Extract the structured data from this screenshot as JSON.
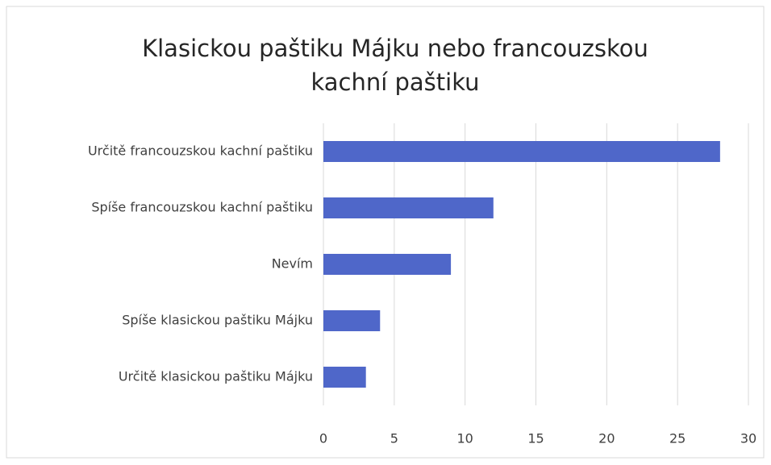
{
  "chart_data": {
    "type": "bar",
    "orientation": "horizontal",
    "title": [
      "Klasickou paštiku Májku nebo francouzskou",
      "kachní paštiku"
    ],
    "categories": [
      "Určitě francouzskou kachní paštiku",
      "Spíše francouzskou kachní paštiku",
      "Nevím",
      "Spíše klasickou paštiku Májku",
      "Určitě klasickou paštiku Májku"
    ],
    "values": [
      28,
      12,
      9,
      4,
      3
    ],
    "color": "#4f67c9",
    "xlim": [
      0,
      30
    ],
    "xticks": [
      0,
      5,
      10,
      15,
      20,
      25,
      30
    ],
    "grid": true
  }
}
